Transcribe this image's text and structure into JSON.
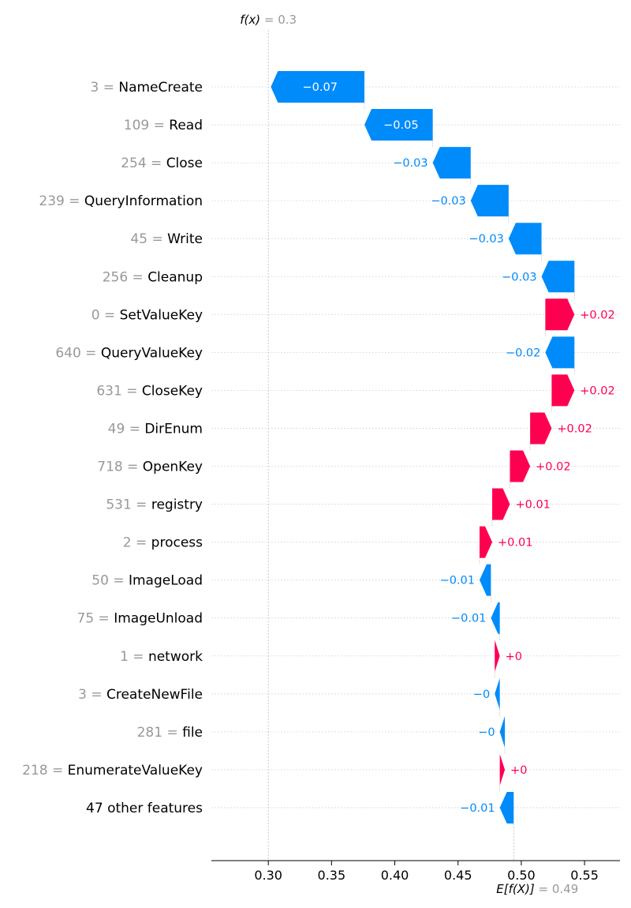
{
  "chart_data": {
    "type": "waterfall",
    "fx_label": "f(x)",
    "fx_value_text": "= 0.3",
    "fx": 0.3,
    "ex_label": "E[f(X)]",
    "ex_value_text": "= 0.49",
    "base_value": 0.494,
    "xlim": [
      0.255,
      0.578
    ],
    "xticks": [
      0.3,
      0.35,
      0.4,
      0.45,
      0.5,
      0.55
    ],
    "xtick_labels": [
      "0.30",
      "0.35",
      "0.40",
      "0.45",
      "0.50",
      "0.55"
    ],
    "positive_color": "#ff0051",
    "negative_color": "#008bfb",
    "features": [
      {
        "value": "3",
        "name": "NameCreate",
        "shap": -0.074,
        "label": "−0.07"
      },
      {
        "value": "109",
        "name": "Read",
        "shap": -0.054,
        "label": "−0.05"
      },
      {
        "value": "254",
        "name": "Close",
        "shap": -0.03,
        "label": "−0.03"
      },
      {
        "value": "239",
        "name": "QueryInformation",
        "shap": -0.03,
        "label": "−0.03"
      },
      {
        "value": "45",
        "name": "Write",
        "shap": -0.026,
        "label": "−0.03"
      },
      {
        "value": "256",
        "name": "Cleanup",
        "shap": -0.026,
        "label": "−0.03"
      },
      {
        "value": "0",
        "name": "SetValueKey",
        "shap": 0.023,
        "label": "+0.02"
      },
      {
        "value": "640",
        "name": "QueryValueKey",
        "shap": -0.023,
        "label": "−0.02"
      },
      {
        "value": "631",
        "name": "CloseKey",
        "shap": 0.018,
        "label": "+0.02"
      },
      {
        "value": "49",
        "name": "DirEnum",
        "shap": 0.017,
        "label": "+0.02"
      },
      {
        "value": "718",
        "name": "OpenKey",
        "shap": 0.016,
        "label": "+0.02"
      },
      {
        "value": "531",
        "name": "registry",
        "shap": 0.014,
        "label": "+0.01"
      },
      {
        "value": "2",
        "name": "process",
        "shap": 0.01,
        "label": "+0.01"
      },
      {
        "value": "50",
        "name": "ImageLoad",
        "shap": -0.009,
        "label": "−0.01"
      },
      {
        "value": "75",
        "name": "ImageUnload",
        "shap": -0.007,
        "label": "−0.01"
      },
      {
        "value": "1",
        "name": "network",
        "shap": 0.004,
        "label": "+0"
      },
      {
        "value": "3",
        "name": "CreateNewFile",
        "shap": -0.004,
        "label": "−0"
      },
      {
        "value": "281",
        "name": "file",
        "shap": -0.004,
        "label": "−0"
      },
      {
        "value": "218",
        "name": "EnumerateValueKey",
        "shap": 0.004,
        "label": "+0"
      },
      {
        "value": "",
        "name": "47 other features",
        "shap": -0.011,
        "label": "−0.01"
      }
    ]
  }
}
